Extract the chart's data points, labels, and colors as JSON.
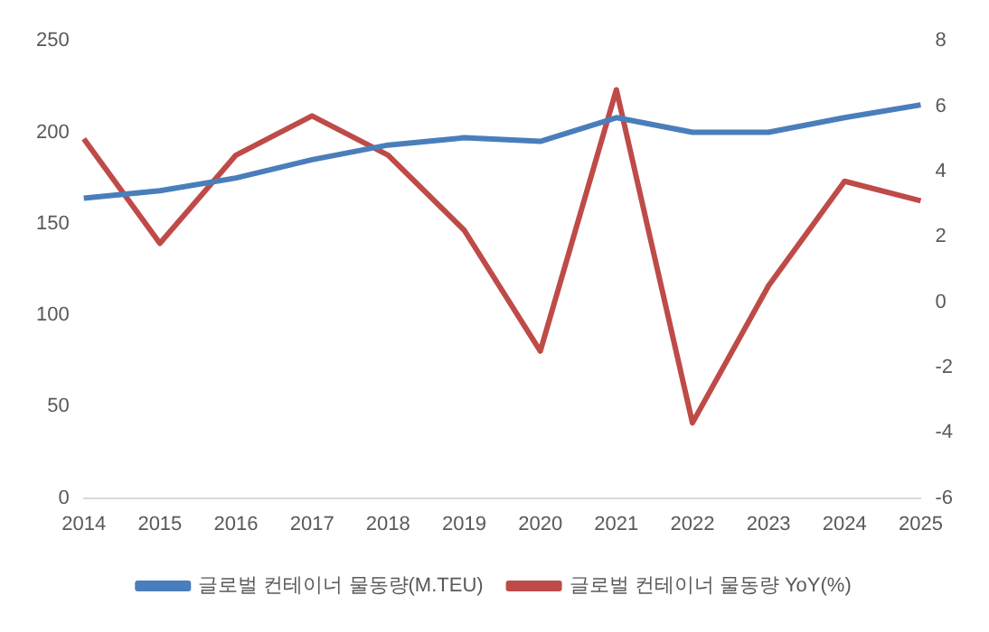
{
  "chart_data": {
    "type": "line",
    "categories": [
      "2014",
      "2015",
      "2016",
      "2017",
      "2018",
      "2019",
      "2020",
      "2021",
      "2022",
      "2023",
      "2024",
      "2025"
    ],
    "series": [
      {
        "name": "글로벌 컨테이너 물동량(M.TEU)",
        "color": "#4a7ebb",
        "values": [
          164,
          168,
          175,
          185,
          193,
          197,
          195,
          208,
          200,
          200,
          208,
          215
        ]
      },
      {
        "name": "글로벌 컨테이너 물동량 YoY(%)",
        "color": "#be4b48",
        "axis": "y2",
        "values": [
          5.0,
          1.8,
          4.5,
          5.7,
          4.5,
          2.2,
          -1.5,
          6.5,
          -3.7,
          0.5,
          3.7,
          3.1
        ]
      }
    ],
    "ylim": [
      0,
      250
    ],
    "yticks": [
      0,
      50,
      100,
      150,
      200,
      250
    ],
    "y2lim": [
      -6,
      8
    ],
    "y2ticks": [
      -6,
      -4,
      -2,
      0,
      2,
      4,
      6,
      8
    ],
    "grid": false,
    "legend": "bottom",
    "marker": "none",
    "line_style": "solid"
  }
}
